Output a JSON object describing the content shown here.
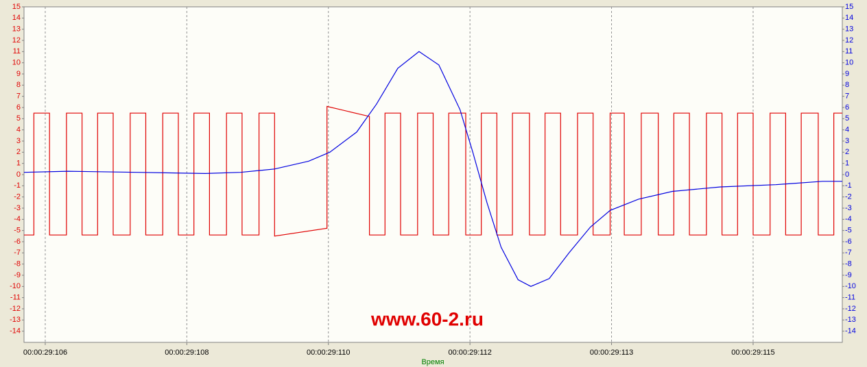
{
  "chart_data": {
    "type": "line",
    "xlabel": "Время",
    "annotation": "www.60-2.ru",
    "xlim": [
      -0.15,
      5.63
    ],
    "xticks": [
      {
        "value": 0,
        "label": "00:00:29:106"
      },
      {
        "value": 1,
        "label": "00:00:29:108"
      },
      {
        "value": 2,
        "label": "00:00:29:110"
      },
      {
        "value": 3,
        "label": "00:00:29:112"
      },
      {
        "value": 4,
        "label": "00:00:29:113"
      },
      {
        "value": 5,
        "label": "00:00:29:115"
      }
    ],
    "ylim": [
      -15,
      15
    ],
    "yticks": [
      -14,
      -13,
      -12,
      -11,
      -10,
      -9,
      -8,
      -7,
      -6,
      -5,
      -4,
      -3,
      -2,
      -1,
      0,
      1,
      2,
      3,
      4,
      5,
      6,
      7,
      8,
      9,
      10,
      11,
      12,
      13,
      14,
      15
    ],
    "y2lim": [
      -15,
      15
    ],
    "y2ticks": [
      -14,
      -13,
      -12,
      -11,
      -10,
      -9,
      -8,
      -7,
      -6,
      -5,
      -4,
      -3,
      -2,
      -1,
      0,
      1,
      2,
      3,
      4,
      5,
      6,
      7,
      8,
      9,
      10,
      11,
      12,
      13,
      14,
      15
    ],
    "grid": true,
    "series": [
      {
        "color": "#e00000",
        "x": [
          -0.15,
          -0.08,
          -0.08,
          0.03,
          0.03,
          0.15,
          0.15,
          0.26,
          0.26,
          0.37,
          0.37,
          0.48,
          0.48,
          0.6,
          0.6,
          0.71,
          0.71,
          0.83,
          0.83,
          0.94,
          0.94,
          1.05,
          1.05,
          1.16,
          1.16,
          1.28,
          1.28,
          1.39,
          1.39,
          1.51,
          1.51,
          1.62,
          1.62,
          1.99,
          1.99,
          2.29,
          2.29,
          2.4,
          2.4,
          2.51,
          2.51,
          2.63,
          2.63,
          2.74,
          2.74,
          2.85,
          2.85,
          2.97,
          2.97,
          3.08,
          3.08,
          3.19,
          3.19,
          3.3,
          3.3,
          3.42,
          3.42,
          3.53,
          3.53,
          3.64,
          3.64,
          3.76,
          3.76,
          3.87,
          3.87,
          3.99,
          3.99,
          4.09,
          4.09,
          4.21,
          4.21,
          4.33,
          4.33,
          4.44,
          4.44,
          4.55,
          4.55,
          4.67,
          4.67,
          4.78,
          4.78,
          4.89,
          4.89,
          5.0,
          5.0,
          5.12,
          5.12,
          5.23,
          5.23,
          5.34,
          5.34,
          5.46,
          5.46,
          5.57,
          5.57,
          5.63
        ],
        "values": [
          -5.4,
          -5.4,
          5.5,
          5.5,
          -5.4,
          -5.4,
          5.5,
          5.5,
          -5.4,
          -5.4,
          5.5,
          5.5,
          -5.4,
          -5.4,
          5.5,
          5.5,
          -5.4,
          -5.4,
          5.5,
          5.5,
          -5.4,
          -5.4,
          5.5,
          5.5,
          -5.4,
          -5.4,
          5.5,
          5.5,
          -5.4,
          -5.4,
          5.5,
          5.5,
          -5.5,
          -4.8,
          6.1,
          5.2,
          -5.4,
          -5.4,
          5.5,
          5.5,
          -5.4,
          -5.4,
          5.5,
          5.5,
          -5.4,
          -5.4,
          5.5,
          5.5,
          -5.4,
          -5.4,
          5.5,
          5.5,
          -5.4,
          -5.4,
          5.5,
          5.5,
          -5.4,
          -5.4,
          5.5,
          5.5,
          -5.4,
          -5.4,
          5.5,
          5.5,
          -5.4,
          -5.4,
          5.5,
          5.5,
          -5.4,
          -5.4,
          5.5,
          5.5,
          -5.4,
          -5.4,
          5.5,
          5.5,
          -5.4,
          -5.4,
          5.5,
          5.5,
          -5.4,
          -5.4,
          5.5,
          5.5,
          -5.4,
          -5.4,
          5.5,
          5.5,
          -5.4,
          -5.4,
          5.5,
          5.5,
          -5.4,
          -5.4,
          5.5,
          5.5
        ]
      },
      {
        "color": "#0000e0",
        "axis": "y2",
        "x": [
          -0.15,
          0.16,
          0.65,
          1.13,
          1.38,
          1.62,
          1.86,
          2.01,
          2.2,
          2.34,
          2.49,
          2.64,
          2.78,
          2.93,
          3.02,
          3.12,
          3.22,
          3.34,
          3.43,
          3.56,
          3.7,
          3.85,
          3.99,
          4.19,
          4.43,
          4.77,
          5.16,
          5.49,
          5.63
        ],
        "values": [
          0.2,
          0.3,
          0.2,
          0.1,
          0.2,
          0.5,
          1.2,
          2.0,
          3.8,
          6.3,
          9.5,
          11.0,
          9.8,
          5.8,
          2.0,
          -2.5,
          -6.5,
          -9.4,
          -10.0,
          -9.3,
          -7.0,
          -4.7,
          -3.2,
          -2.2,
          -1.5,
          -1.1,
          -0.9,
          -0.6,
          -0.6
        ]
      }
    ]
  }
}
